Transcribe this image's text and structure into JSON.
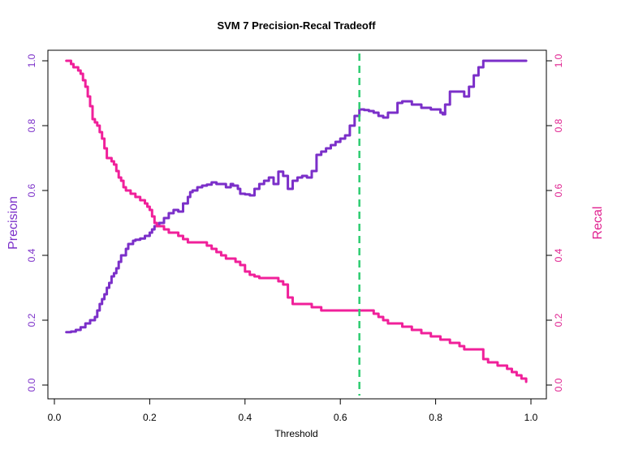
{
  "colors": {
    "precision": "#7B2FC9",
    "recall": "#F0209A",
    "threshold": "#2ECC71",
    "axis": "#000000",
    "left_axis_text": "#7B2FC9",
    "right_axis_text": "#E0208F"
  },
  "chart_data": {
    "type": "line",
    "title": "SVM 7 Precision-Recal Tradeoff",
    "xlabel": "Threshold",
    "ylabel": "Precision",
    "y2label": "Recal",
    "xlim": [
      0.0,
      1.0
    ],
    "ylim": [
      0.0,
      1.0
    ],
    "y2lim": [
      0.0,
      1.0
    ],
    "x_ticks": [
      "0.0",
      "0.2",
      "0.4",
      "0.6",
      "0.8",
      "1.0"
    ],
    "y_ticks": [
      "0.0",
      "0.2",
      "0.4",
      "0.6",
      "0.8",
      "1.0"
    ],
    "y2_ticks": [
      "0.0",
      "0.2",
      "0.4",
      "0.6",
      "0.8",
      "1.0"
    ],
    "threshold_line": 0.64,
    "series": [
      {
        "name": "Precision",
        "axis": "left",
        "x": [
          0.025,
          0.035,
          0.045,
          0.055,
          0.065,
          0.075,
          0.085,
          0.09,
          0.095,
          0.1,
          0.105,
          0.11,
          0.115,
          0.12,
          0.125,
          0.13,
          0.135,
          0.14,
          0.15,
          0.155,
          0.165,
          0.17,
          0.18,
          0.19,
          0.2,
          0.205,
          0.21,
          0.22,
          0.23,
          0.24,
          0.25,
          0.26,
          0.27,
          0.28,
          0.285,
          0.29,
          0.3,
          0.31,
          0.32,
          0.33,
          0.34,
          0.35,
          0.36,
          0.37,
          0.375,
          0.385,
          0.39,
          0.4,
          0.41,
          0.42,
          0.43,
          0.44,
          0.45,
          0.46,
          0.47,
          0.48,
          0.49,
          0.5,
          0.51,
          0.52,
          0.53,
          0.54,
          0.55,
          0.56,
          0.57,
          0.58,
          0.59,
          0.6,
          0.61,
          0.62,
          0.63,
          0.64,
          0.65,
          0.66,
          0.67,
          0.68,
          0.69,
          0.7,
          0.72,
          0.73,
          0.75,
          0.77,
          0.79,
          0.81,
          0.815,
          0.82,
          0.83,
          0.84,
          0.86,
          0.87,
          0.88,
          0.89,
          0.9,
          0.92,
          0.95,
          0.99
        ],
        "y": [
          0.163,
          0.165,
          0.17,
          0.178,
          0.19,
          0.2,
          0.21,
          0.23,
          0.25,
          0.265,
          0.28,
          0.3,
          0.315,
          0.335,
          0.345,
          0.36,
          0.38,
          0.4,
          0.42,
          0.435,
          0.445,
          0.448,
          0.452,
          0.46,
          0.47,
          0.48,
          0.49,
          0.5,
          0.515,
          0.53,
          0.54,
          0.535,
          0.56,
          0.58,
          0.595,
          0.6,
          0.61,
          0.615,
          0.618,
          0.625,
          0.62,
          0.62,
          0.61,
          0.62,
          0.615,
          0.605,
          0.59,
          0.588,
          0.585,
          0.605,
          0.62,
          0.63,
          0.64,
          0.62,
          0.658,
          0.645,
          0.605,
          0.63,
          0.64,
          0.645,
          0.64,
          0.66,
          0.71,
          0.72,
          0.73,
          0.74,
          0.75,
          0.76,
          0.77,
          0.8,
          0.83,
          0.85,
          0.848,
          0.845,
          0.84,
          0.83,
          0.825,
          0.84,
          0.87,
          0.875,
          0.865,
          0.855,
          0.85,
          0.84,
          0.835,
          0.865,
          0.905,
          0.905,
          0.89,
          0.92,
          0.955,
          0.98,
          1.0,
          1.0,
          1.0,
          1.0
        ]
      },
      {
        "name": "Recal",
        "axis": "right",
        "x": [
          0.025,
          0.03,
          0.035,
          0.04,
          0.045,
          0.05,
          0.055,
          0.06,
          0.065,
          0.07,
          0.075,
          0.08,
          0.085,
          0.09,
          0.095,
          0.1,
          0.105,
          0.11,
          0.115,
          0.12,
          0.125,
          0.13,
          0.135,
          0.14,
          0.145,
          0.15,
          0.16,
          0.17,
          0.18,
          0.19,
          0.195,
          0.2,
          0.205,
          0.21,
          0.215,
          0.22,
          0.23,
          0.24,
          0.25,
          0.26,
          0.27,
          0.28,
          0.29,
          0.3,
          0.31,
          0.32,
          0.33,
          0.34,
          0.35,
          0.36,
          0.37,
          0.38,
          0.39,
          0.4,
          0.41,
          0.42,
          0.43,
          0.44,
          0.45,
          0.46,
          0.47,
          0.48,
          0.49,
          0.5,
          0.52,
          0.54,
          0.55,
          0.56,
          0.6,
          0.64,
          0.67,
          0.68,
          0.69,
          0.7,
          0.72,
          0.73,
          0.75,
          0.77,
          0.79,
          0.81,
          0.82,
          0.83,
          0.84,
          0.85,
          0.86,
          0.87,
          0.88,
          0.89,
          0.9,
          0.91,
          0.93,
          0.95,
          0.96,
          0.97,
          0.98,
          0.99
        ],
        "y": [
          1.0,
          1.0,
          0.99,
          0.98,
          0.98,
          0.97,
          0.96,
          0.94,
          0.92,
          0.89,
          0.86,
          0.82,
          0.81,
          0.8,
          0.78,
          0.76,
          0.73,
          0.7,
          0.7,
          0.69,
          0.68,
          0.66,
          0.64,
          0.63,
          0.61,
          0.6,
          0.59,
          0.58,
          0.57,
          0.56,
          0.55,
          0.54,
          0.52,
          0.5,
          0.49,
          0.49,
          0.48,
          0.47,
          0.47,
          0.46,
          0.45,
          0.44,
          0.44,
          0.44,
          0.44,
          0.43,
          0.42,
          0.41,
          0.4,
          0.39,
          0.39,
          0.38,
          0.37,
          0.35,
          0.34,
          0.335,
          0.33,
          0.33,
          0.33,
          0.33,
          0.32,
          0.31,
          0.27,
          0.25,
          0.25,
          0.24,
          0.24,
          0.23,
          0.23,
          0.23,
          0.22,
          0.21,
          0.2,
          0.19,
          0.19,
          0.18,
          0.17,
          0.16,
          0.15,
          0.14,
          0.14,
          0.13,
          0.13,
          0.12,
          0.11,
          0.11,
          0.11,
          0.11,
          0.08,
          0.07,
          0.06,
          0.05,
          0.04,
          0.03,
          0.02,
          0.01
        ]
      }
    ]
  }
}
